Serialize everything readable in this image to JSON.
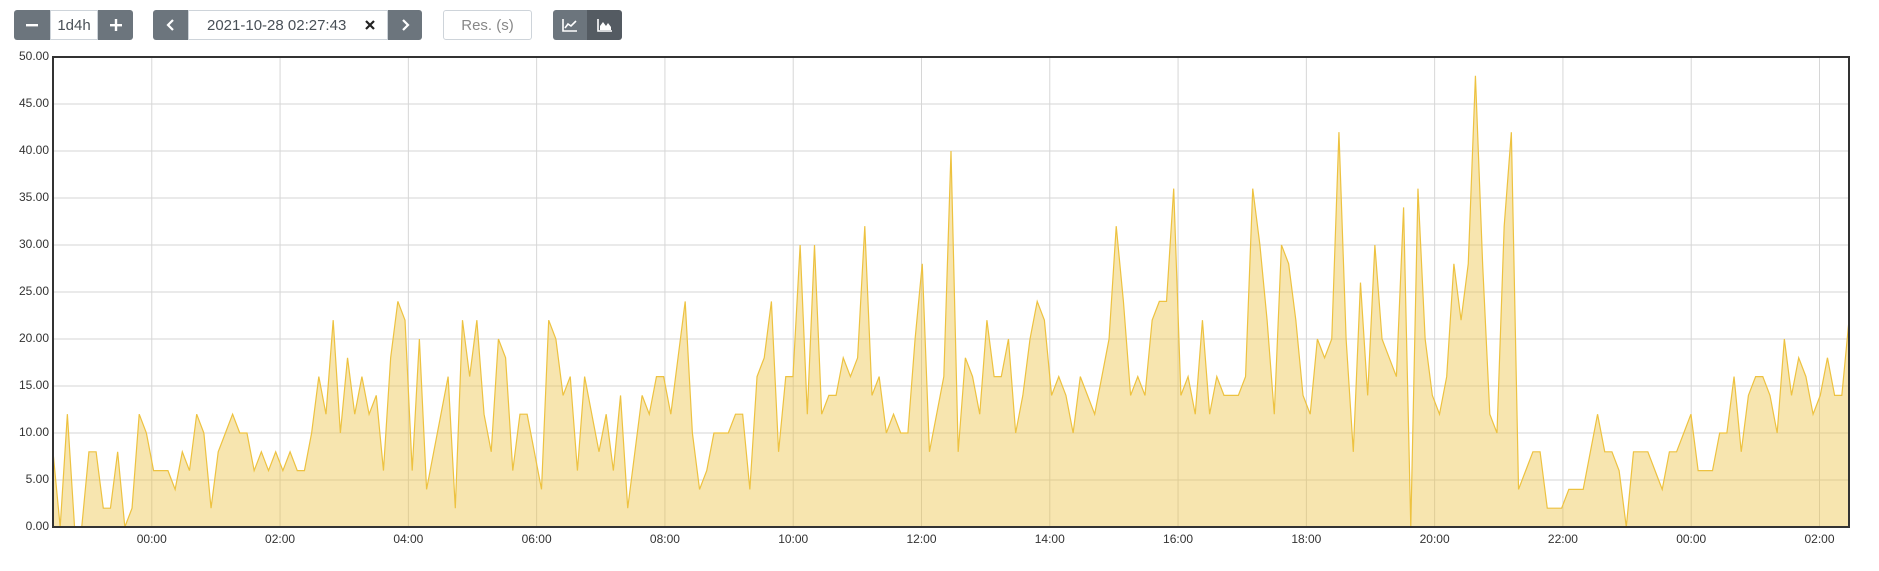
{
  "controls": {
    "range": "1d4h",
    "end_time": "2021-10-28 02:27:43",
    "resolution_placeholder": "Res. (s)"
  },
  "chart_data": {
    "type": "area",
    "color": "#edc240",
    "grid": true,
    "xlim": [
      -1.54,
      26.46
    ],
    "ylim": [
      0,
      50
    ],
    "xticks": [
      {
        "value": 0,
        "label": "00:00"
      },
      {
        "value": 2,
        "label": "02:00"
      },
      {
        "value": 4,
        "label": "04:00"
      },
      {
        "value": 6,
        "label": "06:00"
      },
      {
        "value": 8,
        "label": "08:00"
      },
      {
        "value": 10,
        "label": "10:00"
      },
      {
        "value": 12,
        "label": "12:00"
      },
      {
        "value": 14,
        "label": "14:00"
      },
      {
        "value": 16,
        "label": "16:00"
      },
      {
        "value": 18,
        "label": "18:00"
      },
      {
        "value": 20,
        "label": "20:00"
      },
      {
        "value": 22,
        "label": "22:00"
      },
      {
        "value": 24,
        "label": "00:00"
      },
      {
        "value": 26,
        "label": "02:00"
      }
    ],
    "yticks": [
      {
        "value": 0,
        "label": "0.00"
      },
      {
        "value": 5,
        "label": "5.00"
      },
      {
        "value": 10,
        "label": "10.00"
      },
      {
        "value": 15,
        "label": "15.00"
      },
      {
        "value": 20,
        "label": "20.00"
      },
      {
        "value": 25,
        "label": "25.00"
      },
      {
        "value": 30,
        "label": "30.00"
      },
      {
        "value": 35,
        "label": "35.00"
      },
      {
        "value": 40,
        "label": "40.00"
      },
      {
        "value": 45,
        "label": "45.00"
      },
      {
        "value": 50,
        "label": "50.00"
      }
    ],
    "x": [
      -1.54,
      -1.428,
      -1.316,
      -1.204,
      -1.092,
      -0.98,
      -0.868,
      -0.756,
      -0.644,
      -0.532,
      -0.42,
      -0.308,
      -0.196,
      -0.084,
      0.028,
      0.14,
      0.252,
      0.364,
      0.476,
      0.588,
      0.7,
      0.812,
      0.924,
      1.036,
      1.148,
      1.26,
      1.372,
      1.484,
      1.596,
      1.708,
      1.82,
      1.932,
      2.044,
      2.156,
      2.268,
      2.38,
      2.492,
      2.604,
      2.716,
      2.828,
      2.94,
      3.052,
      3.164,
      3.276,
      3.388,
      3.5,
      3.612,
      3.724,
      3.836,
      3.948,
      4.06,
      4.172,
      4.284,
      4.396,
      4.508,
      4.62,
      4.732,
      4.844,
      4.956,
      5.068,
      5.18,
      5.292,
      5.404,
      5.516,
      5.628,
      5.74,
      5.852,
      5.964,
      6.076,
      6.188,
      6.3,
      6.412,
      6.524,
      6.636,
      6.748,
      6.86,
      6.972,
      7.084,
      7.196,
      7.308,
      7.42,
      7.532,
      7.644,
      7.756,
      7.868,
      7.98,
      8.092,
      8.204,
      8.316,
      8.428,
      8.54,
      8.652,
      8.764,
      8.876,
      8.988,
      9.1,
      9.212,
      9.324,
      9.436,
      9.548,
      9.66,
      9.772,
      9.884,
      9.996,
      10.108,
      10.22,
      10.332,
      10.444,
      10.556,
      10.668,
      10.78,
      10.892,
      11.004,
      11.116,
      11.228,
      11.34,
      11.452,
      11.564,
      11.676,
      11.788,
      11.9,
      12.012,
      12.124,
      12.236,
      12.348,
      12.46,
      12.572,
      12.684,
      12.796,
      12.908,
      13.02,
      13.132,
      13.244,
      13.356,
      13.468,
      13.58,
      13.692,
      13.804,
      13.916,
      14.028,
      14.14,
      14.252,
      14.364,
      14.476,
      14.588,
      14.7,
      14.812,
      14.924,
      15.036,
      15.148,
      15.26,
      15.372,
      15.484,
      15.596,
      15.708,
      15.82,
      15.932,
      16.044,
      16.156,
      16.268,
      16.38,
      16.492,
      16.604,
      16.716,
      16.828,
      16.94,
      17.052,
      17.164,
      17.276,
      17.388,
      17.5,
      17.612,
      17.724,
      17.836,
      17.948,
      18.06,
      18.172,
      18.284,
      18.396,
      18.508,
      18.62,
      18.732,
      18.844,
      18.956,
      19.068,
      19.18,
      19.292,
      19.404,
      19.516,
      19.628,
      19.74,
      19.852,
      19.964,
      20.076,
      20.188,
      20.3,
      20.412,
      20.524,
      20.636,
      20.748,
      20.86,
      20.972,
      21.084,
      21.196,
      21.308,
      21.42,
      21.532,
      21.644,
      21.756,
      21.868,
      21.98,
      22.092,
      22.204,
      22.316,
      22.428,
      22.54,
      22.652,
      22.764,
      22.876,
      22.988,
      23.1,
      23.212,
      23.324,
      23.436,
      23.548,
      23.66,
      23.772,
      23.884,
      23.996,
      24.108,
      24.22,
      24.332,
      24.444,
      24.556,
      24.668,
      24.78,
      24.892,
      25.004,
      25.116,
      25.228,
      25.34,
      25.452,
      25.564,
      25.676,
      25.788,
      25.9,
      26.012,
      26.124,
      26.236,
      26.348,
      26.46
    ],
    "values": [
      8,
      0,
      12,
      0,
      0,
      8,
      8,
      2,
      2,
      8,
      0,
      2,
      12,
      10,
      6,
      6,
      6,
      4,
      8,
      6,
      12,
      10,
      2,
      8,
      10,
      12,
      10,
      10,
      6,
      8,
      6,
      8,
      6,
      8,
      6,
      6,
      10,
      16,
      12,
      22,
      10,
      18,
      12,
      16,
      12,
      14,
      6,
      18,
      24,
      22,
      6,
      20,
      4,
      8,
      12,
      16,
      2,
      22,
      16,
      22,
      12,
      8,
      20,
      18,
      6,
      12,
      12,
      8,
      4,
      22,
      20,
      14,
      16,
      6,
      16,
      12,
      8,
      12,
      6,
      14,
      2,
      8,
      14,
      12,
      16,
      16,
      12,
      18,
      24,
      10,
      4,
      6,
      10,
      10,
      10,
      12,
      12,
      4,
      16,
      18,
      24,
      8,
      16,
      16,
      30,
      12,
      30,
      12,
      14,
      14,
      18,
      16,
      18,
      32,
      14,
      16,
      10,
      12,
      10,
      10,
      20,
      28,
      8,
      12,
      16,
      40,
      8,
      18,
      16,
      12,
      22,
      16,
      16,
      20,
      10,
      14,
      20,
      24,
      22,
      14,
      16,
      14,
      10,
      16,
      14,
      12,
      16,
      20,
      32,
      24,
      14,
      16,
      14,
      22,
      24,
      24,
      36,
      14,
      16,
      12,
      22,
      12,
      16,
      14,
      14,
      14,
      16,
      36,
      30,
      22,
      12,
      30,
      28,
      22,
      14,
      12,
      20,
      18,
      20,
      42,
      20,
      8,
      26,
      14,
      30,
      20,
      18,
      16,
      34,
      0,
      36,
      20,
      14,
      12,
      16,
      28,
      22,
      28,
      48,
      28,
      12,
      10,
      32,
      42,
      4,
      6,
      8,
      8,
      2,
      2,
      2,
      4,
      4,
      4,
      8,
      12,
      8,
      8,
      6,
      0,
      8,
      8,
      8,
      6,
      4,
      8,
      8,
      10,
      12,
      6,
      6,
      6,
      10,
      10,
      16,
      8,
      14,
      16,
      16,
      14,
      10,
      20,
      14,
      18,
      16,
      12,
      14,
      18,
      14,
      14,
      22
    ]
  }
}
